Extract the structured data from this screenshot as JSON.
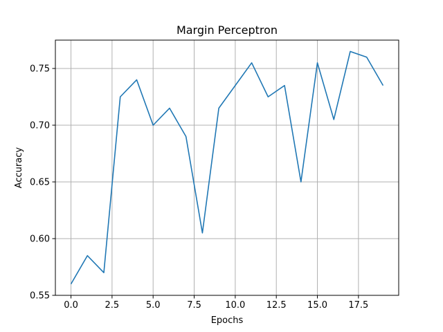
{
  "chart_data": {
    "type": "line",
    "title": "Margin Perceptron",
    "xlabel": "Epochs",
    "ylabel": "Accuracy",
    "xlim": [
      -0.95,
      19.95
    ],
    "ylim": [
      0.55,
      0.775
    ],
    "xticks": [
      0.0,
      2.5,
      5.0,
      7.5,
      10.0,
      12.5,
      15.0,
      17.5
    ],
    "xtick_labels": [
      "0.0",
      "2.5",
      "5.0",
      "7.5",
      "10.0",
      "12.5",
      "15.0",
      "17.5"
    ],
    "yticks": [
      0.55,
      0.6,
      0.65,
      0.7,
      0.75
    ],
    "ytick_labels": [
      "0.55",
      "0.60",
      "0.65",
      "0.70",
      "0.75"
    ],
    "grid": true,
    "line_color": "#1f77b4",
    "series": [
      {
        "x": [
          0,
          1,
          2,
          3,
          4,
          5,
          6,
          7,
          8,
          9,
          10,
          11,
          12,
          13,
          14,
          15,
          16,
          17,
          18,
          19
        ],
        "values": [
          0.56,
          0.585,
          0.57,
          0.725,
          0.74,
          0.7,
          0.715,
          0.69,
          0.605,
          0.715,
          0.735,
          0.755,
          0.725,
          0.735,
          0.65,
          0.755,
          0.705,
          0.765,
          0.76,
          0.735
        ]
      }
    ]
  }
}
